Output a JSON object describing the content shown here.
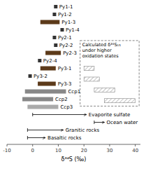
{
  "chart_data": {
    "type": "range_bar",
    "orientation": "horizontal",
    "xlabel": "δ³⁴S (‰)",
    "categories": [
      "Py1-1",
      "Py1-2",
      "Py1-3",
      "Py1-4",
      "Py2-1",
      "Py2-2",
      "Py2-3",
      "Py2-4",
      "Py3-1",
      "Py3-2",
      "Py3-3",
      "Ccp1",
      "Ccp2",
      "Ccp3"
    ],
    "values": [
      9.0,
      8.5,
      [
        3.0,
        10.5
      ],
      11.5,
      8.5,
      9.0,
      [
        5.0,
        11.0
      ],
      2.75,
      [
        3.0,
        9.0
      ],
      -1.0,
      [
        2.0,
        9.0
      ],
      [
        -3.0,
        13.0
      ],
      [
        -4.0,
        8.0
      ],
      [
        -2.0,
        10.0
      ]
    ],
    "colors": [
      "#333333",
      "#333333",
      "#5c3a1a",
      "#333333",
      "#333333",
      "#333333",
      "#5c3a1a",
      "#333333",
      "#5c3a1a",
      "#333333",
      "#5c3a1a",
      "#888888",
      "#888888",
      "#aaaaaa"
    ],
    "marker": "square",
    "box": {
      "text": "Calculated δ³⁴S₁₅\nunder higher\noxidation states",
      "xlim": [
        18.5,
        41.5
      ],
      "color": "#888888",
      "ranges": [
        [
          20.0,
          24.0
        ],
        [
          20.0,
          26.0
        ],
        [
          24.0,
          32.0
        ],
        [
          28.0,
          40.0
        ]
      ]
    },
    "annotations": [
      {
        "label": "Evaporite sulfate",
        "x0": 0,
        "x1": 21
      },
      {
        "label": "Ocean water",
        "x0": 24,
        "x1": 28
      },
      {
        "label": "Granitic rocks",
        "x0": -2,
        "x1": 12
      },
      {
        "label": "Basaltic rocks",
        "x0": -2,
        "x1": 5
      }
    ],
    "xlim": [
      -10,
      42
    ],
    "xticks": [
      -10,
      0,
      10,
      20,
      30,
      40
    ]
  }
}
